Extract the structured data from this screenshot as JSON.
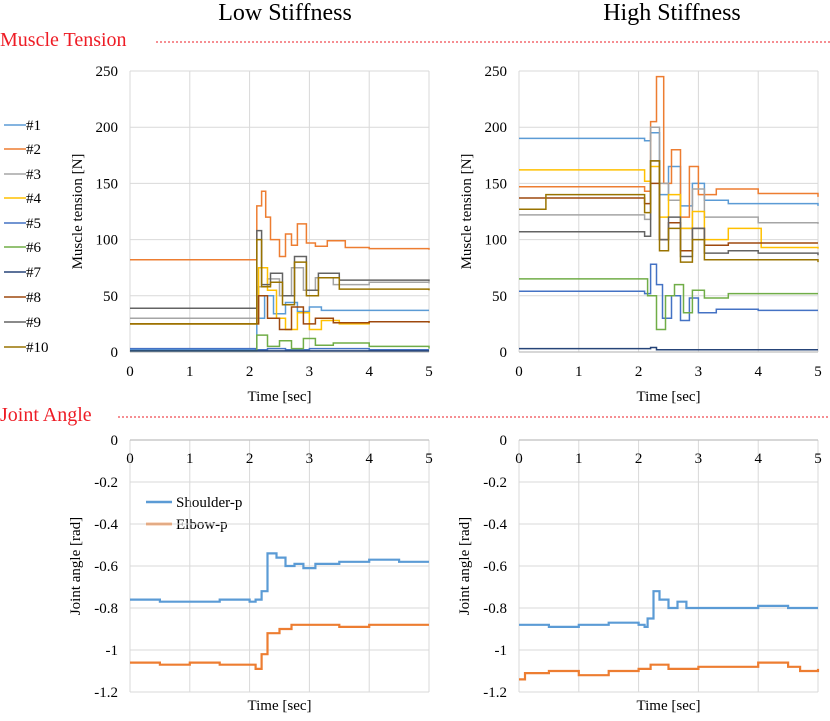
{
  "colors": {
    "section": "#ee1c25",
    "grid": "#d9d9d9",
    "axis": "#bfbfbf",
    "series": [
      "#5b9bd5",
      "#ed7d31",
      "#a5a5a5",
      "#ffc000",
      "#4472c4",
      "#70ad47",
      "#264478",
      "#9e480e",
      "#636363",
      "#997300"
    ]
  },
  "headers": {
    "low": "Low Stiffness",
    "high": "High Stiffness"
  },
  "sections": {
    "tension": "Muscle Tension",
    "angle": "Joint Angle"
  },
  "legends": {
    "tension": [
      "#1",
      "#2",
      "#3",
      "#4",
      "#5",
      "#6",
      "#7",
      "#8",
      "#9",
      "#10"
    ],
    "angle": [
      "Shoulder-p",
      "Elbow-p"
    ]
  },
  "chart_data": [
    {
      "id": "low-tension",
      "type": "line",
      "title": "Low Stiffness",
      "xlabel": "Time [sec]",
      "ylabel": "Muscle tension [N]",
      "xlim": [
        0,
        5
      ],
      "ylim": [
        0,
        250
      ],
      "xticks": [
        0,
        1,
        2,
        3,
        4,
        5
      ],
      "yticks": [
        0,
        50,
        100,
        150,
        200,
        250
      ],
      "series": [
        {
          "name": "#1",
          "x": [
            0,
            2.05,
            2.12,
            2.25,
            2.4,
            2.6,
            2.8,
            3.0,
            3.2,
            3.5,
            4,
            5
          ],
          "y": [
            2,
            2,
            30,
            50,
            34,
            44,
            36,
            40,
            37,
            37,
            37,
            37
          ]
        },
        {
          "name": "#2",
          "x": [
            0,
            2.05,
            2.12,
            2.2,
            2.27,
            2.35,
            2.5,
            2.6,
            2.7,
            2.8,
            2.95,
            3.1,
            3.3,
            3.6,
            4,
            5
          ],
          "y": [
            82,
            82,
            130,
            143,
            120,
            100,
            85,
            105,
            95,
            114,
            97,
            94,
            99,
            93,
            92,
            91
          ]
        },
        {
          "name": "#3",
          "x": [
            0,
            2.05,
            2.15,
            2.3,
            2.5,
            2.7,
            2.9,
            3.1,
            3.4,
            4,
            5
          ],
          "y": [
            30,
            30,
            58,
            65,
            50,
            75,
            55,
            66,
            60,
            62,
            61
          ]
        },
        {
          "name": "#4",
          "x": [
            0,
            2.05,
            2.15,
            2.3,
            2.45,
            2.6,
            2.8,
            3.0,
            3.2,
            3.5,
            4,
            5
          ],
          "y": [
            25,
            25,
            75,
            55,
            30,
            20,
            35,
            20,
            28,
            25,
            27,
            26
          ]
        },
        {
          "name": "#5",
          "x": [
            0,
            2.05,
            2.1,
            2.3,
            2.6,
            3,
            4,
            5
          ],
          "y": [
            3,
            3,
            2,
            3,
            2,
            3,
            2,
            2
          ]
        },
        {
          "name": "#6",
          "x": [
            0,
            2.05,
            2.12,
            2.3,
            2.5,
            2.7,
            2.9,
            3.1,
            3.4,
            4,
            5
          ],
          "y": [
            1,
            1,
            15,
            5,
            10,
            3,
            12,
            6,
            8,
            5,
            3
          ]
        },
        {
          "name": "#7",
          "x": [
            0,
            5
          ],
          "y": [
            1,
            1
          ]
        },
        {
          "name": "#8",
          "x": [
            0,
            2.05,
            2.15,
            2.3,
            2.5,
            2.7,
            2.9,
            3.1,
            3.4,
            4,
            5
          ],
          "y": [
            25,
            25,
            50,
            30,
            20,
            40,
            25,
            30,
            26,
            27,
            26
          ]
        },
        {
          "name": "#9",
          "x": [
            0,
            2.05,
            2.12,
            2.2,
            2.35,
            2.55,
            2.75,
            2.95,
            3.15,
            3.5,
            4,
            5
          ],
          "y": [
            39,
            39,
            108,
            60,
            70,
            50,
            85,
            55,
            70,
            64,
            64,
            63
          ]
        },
        {
          "name": "#10",
          "x": [
            0,
            2.05,
            2.12,
            2.2,
            2.35,
            2.55,
            2.75,
            2.95,
            3.15,
            3.5,
            4,
            5
          ],
          "y": [
            25,
            25,
            100,
            58,
            62,
            42,
            80,
            50,
            66,
            56,
            56,
            55
          ]
        }
      ]
    },
    {
      "id": "high-tension",
      "type": "line",
      "title": "High Stiffness",
      "xlabel": "Time [sec]",
      "ylabel": "Muscle tension [N]",
      "xlim": [
        0,
        5
      ],
      "ylim": [
        0,
        250
      ],
      "xticks": [
        0,
        1,
        2,
        3,
        4,
        5
      ],
      "yticks": [
        0,
        50,
        100,
        150,
        200,
        250
      ],
      "series": [
        {
          "name": "#1",
          "x": [
            0,
            2.1,
            2.2,
            2.35,
            2.5,
            2.7,
            2.9,
            3.1,
            3.5,
            4,
            5
          ],
          "y": [
            190,
            188,
            195,
            140,
            165,
            130,
            150,
            135,
            132,
            132,
            130
          ]
        },
        {
          "name": "#2",
          "x": [
            0,
            2.1,
            2.2,
            2.3,
            2.42,
            2.55,
            2.7,
            2.85,
            3.0,
            3.3,
            4,
            5
          ],
          "y": [
            147,
            143,
            205,
            245,
            150,
            180,
            120,
            165,
            140,
            145,
            141,
            138
          ]
        },
        {
          "name": "#3",
          "x": [
            0,
            2.1,
            2.2,
            2.35,
            2.5,
            2.7,
            2.9,
            3.1,
            3.5,
            4,
            5
          ],
          "y": [
            122,
            118,
            200,
            150,
            135,
            110,
            145,
            120,
            120,
            115,
            114
          ]
        },
        {
          "name": "#4",
          "x": [
            0,
            2.1,
            2.2,
            2.35,
            2.5,
            2.7,
            2.9,
            3.1,
            3.5,
            3.9,
            4.05,
            5
          ],
          "y": [
            162,
            152,
            165,
            120,
            140,
            110,
            125,
            100,
            110,
            110,
            93,
            92
          ]
        },
        {
          "name": "#5",
          "x": [
            0,
            2.1,
            2.2,
            2.3,
            2.4,
            2.55,
            2.7,
            2.85,
            3.0,
            3.3,
            4,
            5
          ],
          "y": [
            54,
            52,
            78,
            60,
            30,
            50,
            28,
            48,
            35,
            38,
            37,
            37
          ]
        },
        {
          "name": "#6",
          "x": [
            0,
            2.1,
            2.15,
            2.3,
            2.45,
            2.6,
            2.75,
            2.9,
            3.1,
            3.5,
            4,
            5
          ],
          "y": [
            65,
            65,
            50,
            20,
            50,
            60,
            35,
            55,
            48,
            52,
            52,
            52
          ]
        },
        {
          "name": "#7",
          "x": [
            0,
            2.1,
            2.2,
            2.3,
            3,
            4,
            5
          ],
          "y": [
            3,
            3,
            4,
            2,
            2,
            2,
            2
          ]
        },
        {
          "name": "#8",
          "x": [
            0,
            2.1,
            2.2,
            2.35,
            2.5,
            2.7,
            2.9,
            3.1,
            3.5,
            4,
            5
          ],
          "y": [
            137,
            132,
            150,
            100,
            115,
            90,
            110,
            95,
            97,
            97,
            97
          ]
        },
        {
          "name": "#9",
          "x": [
            0,
            2.1,
            2.2,
            2.35,
            2.5,
            2.7,
            2.9,
            3.1,
            3.5,
            4,
            5
          ],
          "y": [
            107,
            103,
            170,
            100,
            120,
            85,
            110,
            88,
            90,
            88,
            86
          ]
        },
        {
          "name": "#10",
          "x": [
            0,
            0.4,
            0.45,
            2.1,
            2.2,
            2.35,
            2.5,
            2.7,
            2.9,
            3.1,
            3.5,
            4,
            5
          ],
          "y": [
            127,
            127,
            140,
            124,
            170,
            90,
            110,
            80,
            100,
            82,
            82,
            82,
            80
          ]
        }
      ]
    },
    {
      "id": "low-angle",
      "type": "line",
      "title": "Low Stiffness",
      "xlabel": "Time [sec]",
      "ylabel": "Joint angle [rad]",
      "xlim": [
        0,
        5
      ],
      "ylim": [
        -1.2,
        0
      ],
      "xticks": [
        0,
        1,
        2,
        3,
        4,
        5
      ],
      "yticks": [
        0,
        -0.2,
        -0.4,
        -0.6,
        -0.8,
        -1,
        -1.2
      ],
      "series": [
        {
          "name": "Shoulder-p",
          "x": [
            0,
            0.5,
            1,
            1.5,
            2,
            2.1,
            2.2,
            2.3,
            2.45,
            2.6,
            2.75,
            2.9,
            3.1,
            3.5,
            4,
            4.5,
            5
          ],
          "y": [
            -0.76,
            -0.77,
            -0.77,
            -0.76,
            -0.77,
            -0.76,
            -0.72,
            -0.54,
            -0.56,
            -0.6,
            -0.59,
            -0.61,
            -0.59,
            -0.58,
            -0.57,
            -0.58,
            -0.58
          ]
        },
        {
          "name": "Elbow-p",
          "x": [
            0,
            0.5,
            1,
            1.5,
            2,
            2.1,
            2.2,
            2.3,
            2.5,
            2.7,
            3,
            3.5,
            4,
            4.5,
            5
          ],
          "y": [
            -1.06,
            -1.07,
            -1.06,
            -1.07,
            -1.07,
            -1.09,
            -1.02,
            -0.92,
            -0.9,
            -0.88,
            -0.88,
            -0.89,
            -0.88,
            -0.88,
            -0.88
          ]
        }
      ]
    },
    {
      "id": "high-angle",
      "type": "line",
      "title": "High Stiffness",
      "xlabel": "Time [sec]",
      "ylabel": "Joint angle [rad]",
      "xlim": [
        0,
        5
      ],
      "ylim": [
        -1.2,
        0
      ],
      "xticks": [
        0,
        1,
        2,
        3,
        4,
        5
      ],
      "yticks": [
        0,
        -0.2,
        -0.4,
        -0.6,
        -0.8,
        -1,
        -1.2
      ],
      "series": [
        {
          "name": "Shoulder-p",
          "x": [
            0,
            0.5,
            1,
            1.5,
            2,
            2.1,
            2.15,
            2.25,
            2.35,
            2.5,
            2.65,
            2.8,
            3,
            3.5,
            4,
            4.5,
            5
          ],
          "y": [
            -0.88,
            -0.89,
            -0.88,
            -0.87,
            -0.88,
            -0.89,
            -0.85,
            -0.72,
            -0.76,
            -0.8,
            -0.77,
            -0.8,
            -0.8,
            -0.8,
            -0.79,
            -0.8,
            -0.8
          ]
        },
        {
          "name": "Elbow-p",
          "x": [
            0,
            0.1,
            0.5,
            1,
            1.5,
            2,
            2.2,
            2.5,
            3,
            3.5,
            4,
            4.5,
            4.7,
            5
          ],
          "y": [
            -1.14,
            -1.11,
            -1.1,
            -1.12,
            -1.1,
            -1.09,
            -1.07,
            -1.09,
            -1.08,
            -1.08,
            -1.06,
            -1.08,
            -1.1,
            -1.09
          ]
        }
      ]
    }
  ]
}
